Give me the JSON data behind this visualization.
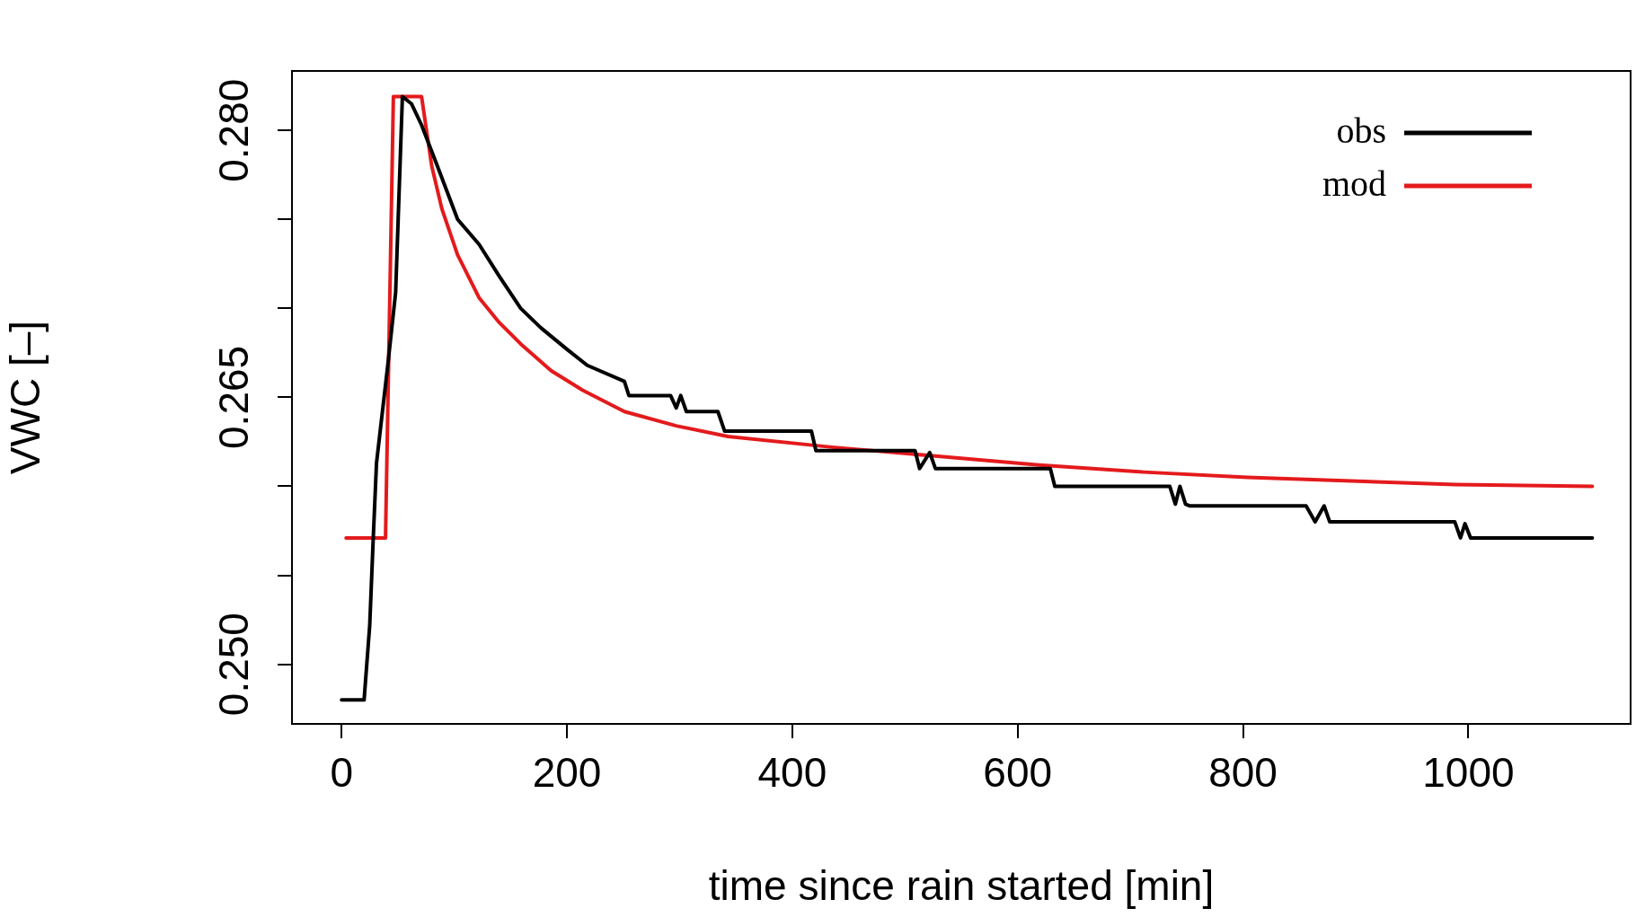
{
  "chart_data": {
    "type": "line",
    "xlabel": "time since rain started [min]",
    "ylabel": "VWC [–]",
    "xlim": [
      -44,
      1144
    ],
    "xticks": [
      0,
      200,
      400,
      600,
      800,
      1000
    ],
    "ylim": [
      0.24665,
      0.28334
    ],
    "yticks": [
      {
        "value": 0.25,
        "label": "0.250"
      },
      {
        "value": 0.255,
        "label": null
      },
      {
        "value": 0.26,
        "label": null
      },
      {
        "value": 0.265,
        "label": "0.265"
      },
      {
        "value": 0.27,
        "label": null
      },
      {
        "value": 0.275,
        "label": null
      },
      {
        "value": 0.28,
        "label": "0.280"
      }
    ],
    "grid": false,
    "legend": "top right",
    "marker": "none",
    "line_style": "solid",
    "series": [
      {
        "name": "obs",
        "color": "#000000",
        "x": [
          0,
          20,
          25,
          28,
          31,
          41,
          48,
          54,
          62,
          71,
          85,
          103,
          122,
          140,
          159,
          177,
          200,
          218,
          251,
          255,
          292,
          297,
          301,
          306,
          334,
          340,
          417,
          421,
          509,
          513,
          522,
          527,
          629,
          633,
          735,
          740,
          744,
          749,
          753,
          856,
          864,
          872,
          877,
          988,
          993,
          997,
          1002,
          1110
        ],
        "values": [
          0.248,
          0.248,
          0.2522,
          0.2569,
          0.2613,
          0.2668,
          0.2709,
          0.2819,
          0.2815,
          0.2803,
          0.278,
          0.275,
          0.2736,
          0.2718,
          0.27,
          0.2689,
          0.2677,
          0.2668,
          0.2659,
          0.2651,
          0.2651,
          0.2644,
          0.2651,
          0.2642,
          0.2642,
          0.2631,
          0.2631,
          0.262,
          0.262,
          0.261,
          0.2619,
          0.261,
          0.261,
          0.26,
          0.26,
          0.259,
          0.26,
          0.259,
          0.2589,
          0.2589,
          0.258,
          0.2589,
          0.258,
          0.258,
          0.2571,
          0.2579,
          0.2571,
          0.2571
        ]
      },
      {
        "name": "mod",
        "color": "#e41a1c",
        "x": [
          4,
          39,
          46,
          71,
          80,
          89,
          103,
          122,
          140,
          159,
          186,
          214,
          251,
          297,
          343,
          435,
          527,
          619,
          712,
          804,
          896,
          988,
          1110
        ],
        "values": [
          0.2571,
          0.2571,
          0.2819,
          0.2819,
          0.278,
          0.2756,
          0.273,
          0.2706,
          0.2692,
          0.268,
          0.2665,
          0.2654,
          0.2642,
          0.2634,
          0.2628,
          0.2622,
          0.2617,
          0.2612,
          0.2608,
          0.2605,
          0.2603,
          0.2601,
          0.26
        ]
      }
    ]
  }
}
